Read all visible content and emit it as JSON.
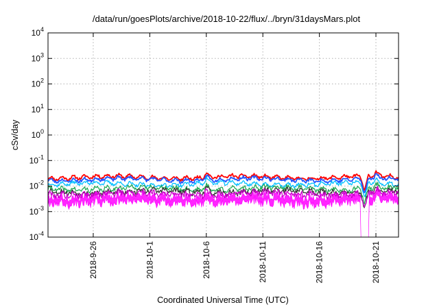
{
  "chart_data": {
    "type": "line",
    "title": "/data/run/goesPlots/archive/2018-10-22/flux/../bryn/31daysMars.plot",
    "xlabel": "Coordinated Universal Time (UTC)",
    "ylabel": "cSv/day",
    "yscale": "log",
    "ylim": [
      0.0001,
      10000
    ],
    "xlim": [
      "2018-09-22",
      "2018-10-23"
    ],
    "grid": true,
    "y_ticks": [
      {
        "base": "10",
        "exp": "-4"
      },
      {
        "base": "10",
        "exp": "-3"
      },
      {
        "base": "10",
        "exp": "-2"
      },
      {
        "base": "10",
        "exp": "-1"
      },
      {
        "base": "10",
        "exp": "0"
      },
      {
        "base": "10",
        "exp": "1"
      },
      {
        "base": "10",
        "exp": "2"
      },
      {
        "base": "10",
        "exp": "3"
      },
      {
        "base": "10",
        "exp": "4"
      }
    ],
    "x_ticks": [
      "2018-9-26",
      "2018-10-1",
      "2018-10-6",
      "2018-10-11",
      "2018-10-16",
      "2018-10-21"
    ],
    "series": [
      {
        "color": "#ff0000",
        "level": 0.022,
        "spread": 0.1,
        "seed": 11
      },
      {
        "color": "#2255ff",
        "level": 0.018,
        "spread": 0.1,
        "seed": 23
      },
      {
        "color": "#00bfff",
        "level": 0.012,
        "spread": 0.12,
        "seed": 37
      },
      {
        "color": "#22aa55",
        "level": 0.008,
        "spread": 0.16,
        "seed": 41
      },
      {
        "color": "#333333",
        "level": 0.006,
        "spread": 0.18,
        "seed": 53
      },
      {
        "color": "#ff00ff",
        "level": 0.004,
        "spread": 0.3,
        "seed": 67,
        "band": true
      },
      {
        "color": "#cc00cc",
        "level": 0.005,
        "spread": 0.22,
        "seed": 79
      }
    ],
    "events": [
      {
        "date": "2018-10-06",
        "factor": 1.6
      },
      {
        "date": "2018-10-20",
        "factor": 0.02,
        "depth_to": 0.0001
      },
      {
        "date": "2018-10-21",
        "factor": 1.5
      }
    ]
  }
}
